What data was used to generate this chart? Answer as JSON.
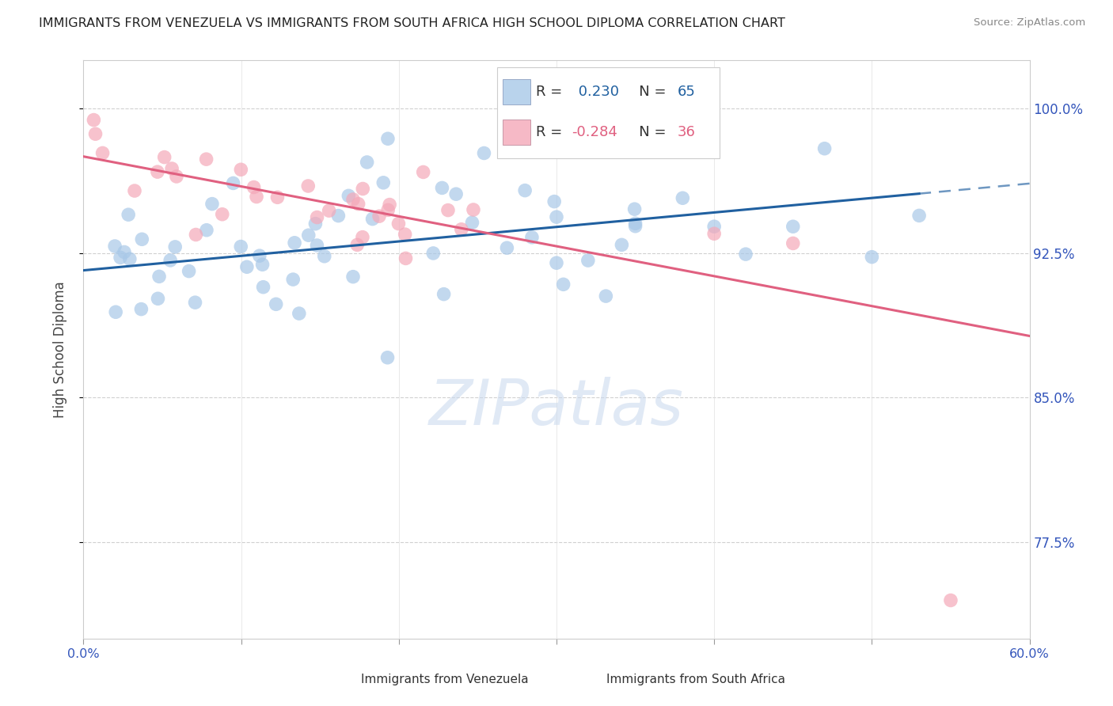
{
  "title": "IMMIGRANTS FROM VENEZUELA VS IMMIGRANTS FROM SOUTH AFRICA HIGH SCHOOL DIPLOMA CORRELATION CHART",
  "source": "Source: ZipAtlas.com",
  "ylabel": "High School Diploma",
  "ytick_labels": [
    "100.0%",
    "92.5%",
    "85.0%",
    "77.5%"
  ],
  "ytick_values": [
    1.0,
    0.925,
    0.85,
    0.775
  ],
  "xlim": [
    0.0,
    0.6
  ],
  "ylim": [
    0.725,
    1.025
  ],
  "venezuela_color": "#a8c8e8",
  "south_africa_color": "#f4a8b8",
  "venezuela_line_color": "#2060a0",
  "south_africa_line_color": "#e06080",
  "R_venezuela": 0.23,
  "N_venezuela": 65,
  "R_south_africa": -0.284,
  "N_south_africa": 36,
  "legend_label_venezuela": "Immigrants from Venezuela",
  "legend_label_south_africa": "Immigrants from South Africa",
  "venezuela_slope": 0.075,
  "venezuela_intercept": 0.916,
  "south_africa_slope": -0.155,
  "south_africa_intercept": 0.975,
  "watermark": "ZIPatlas",
  "background_color": "#ffffff",
  "grid_color": "#d0d0d0"
}
